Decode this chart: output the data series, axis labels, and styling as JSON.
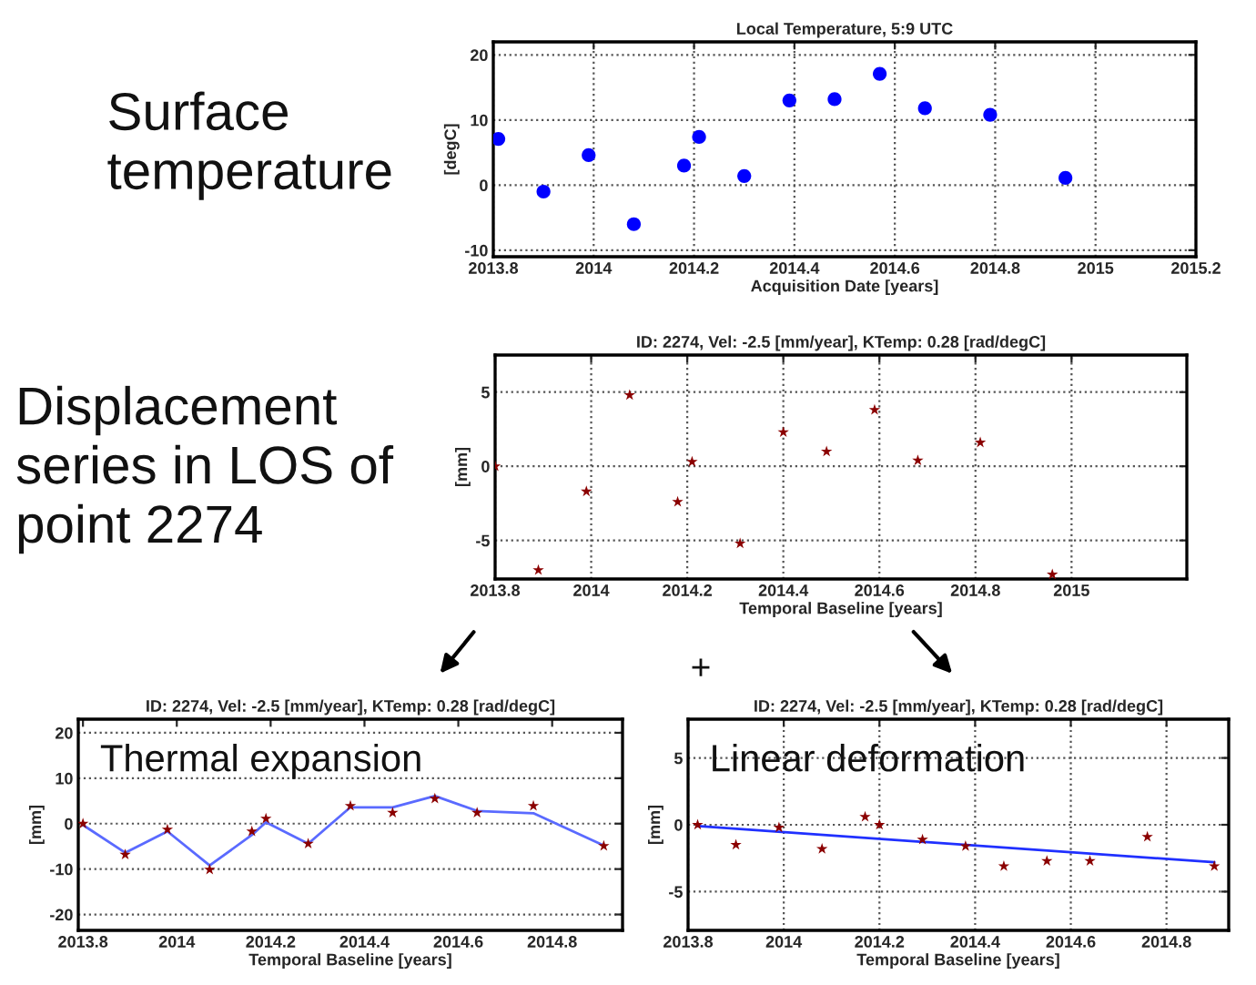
{
  "chart_data": [
    {
      "type": "scatter",
      "title": "Local Temperature, 5:9 UTC",
      "xlabel": "Acquisition Date [years]",
      "ylabel": "[degC]",
      "annotations": [
        "Surface temperature"
      ],
      "x": [
        2013.81,
        2013.9,
        2013.99,
        2014.08,
        2014.18,
        2014.21,
        2014.3,
        2014.39,
        2014.48,
        2014.57,
        2014.66,
        2014.79,
        2014.94
      ],
      "series": [
        {
          "color": "#0000ff",
          "marker": "circle",
          "values": [
            7.1,
            -1.0,
            4.6,
            -6.0,
            3.0,
            7.4,
            1.4,
            13.0,
            13.2,
            17.1,
            11.8,
            10.8,
            1.1
          ]
        }
      ],
      "xlim": [
        2013.8,
        2015.2
      ],
      "xticks": [
        2013.8,
        2014,
        2014.2,
        2014.4,
        2014.6,
        2014.8,
        2015,
        2015.2
      ],
      "ylim": [
        -11,
        22
      ],
      "yticks": [
        -10,
        0,
        10,
        20
      ],
      "grid": true
    },
    {
      "type": "scatter",
      "title": "ID: 2274, Vel: -2.5 [mm/year], KTemp: 0.28 [rad/degC]",
      "xlabel": "Temporal Baseline [years]",
      "ylabel": "[mm]",
      "annotations": [
        "Displacement series in LOS of point 2274",
        "+"
      ],
      "x": [
        2013.8,
        2013.89,
        2013.99,
        2014.08,
        2014.18,
        2014.21,
        2014.31,
        2014.4,
        2014.49,
        2014.59,
        2014.68,
        2014.81,
        2014.96
      ],
      "series": [
        {
          "color": "#8b0000",
          "marker": "star",
          "values": [
            0,
            -7.0,
            -1.7,
            4.8,
            -2.4,
            0.3,
            -5.2,
            2.3,
            1.0,
            3.8,
            0.4,
            1.6,
            -7.3
          ]
        }
      ],
      "xlim": [
        2013.8,
        2015.24
      ],
      "xticks": [
        2013.8,
        2014,
        2014.2,
        2014.4,
        2014.6,
        2014.8,
        2015
      ],
      "ylim": [
        -7.6,
        7.5
      ],
      "yticks": [
        -5,
        0,
        5
      ],
      "grid": true
    },
    {
      "type": "scatter",
      "title": "ID: 2274, Vel: -2.5 [mm/year], KTemp: 0.28 [rad/degC]",
      "xlabel": "Temporal Baseline [years]",
      "ylabel": "[mm]",
      "annotations": [
        "Thermal expansion"
      ],
      "x": [
        2013.8,
        2013.89,
        2013.98,
        2014.07,
        2014.16,
        2014.19,
        2014.28,
        2014.37,
        2014.46,
        2014.55,
        2014.64,
        2014.76,
        2014.91
      ],
      "series": [
        {
          "type": "line",
          "color": "#5a6aff",
          "marker": "none",
          "values": [
            -0.3,
            -6.4,
            -1.7,
            -9.2,
            -2.5,
            0.3,
            -4.4,
            3.6,
            3.6,
            6.1,
            2.8,
            2.3,
            -4.8
          ]
        },
        {
          "color": "#8b0000",
          "marker": "star",
          "values": [
            0,
            -6.8,
            -1.3,
            -10.1,
            -1.7,
            1.1,
            -4.4,
            3.9,
            2.4,
            5.5,
            2.4,
            3.9,
            -4.9
          ]
        }
      ],
      "xlim": [
        2013.79,
        2014.95
      ],
      "xticks": [
        2013.8,
        2014,
        2014.2,
        2014.4,
        2014.6,
        2014.8
      ],
      "ylim": [
        -23.5,
        23
      ],
      "yticks": [
        -20,
        -10,
        0,
        10,
        20
      ],
      "grid": "y"
    },
    {
      "type": "scatter",
      "title": "ID: 2274, Vel: -2.5 [mm/year], KTemp: 0.28 [rad/degC]",
      "xlabel": "Temporal Baseline [years]",
      "ylabel": "[mm]",
      "annotations": [
        "Linear deformation"
      ],
      "x": [
        2013.82,
        2013.9,
        2013.99,
        2014.08,
        2014.17,
        2014.2,
        2014.29,
        2014.38,
        2014.46,
        2014.55,
        2014.64,
        2014.76,
        2014.9
      ],
      "series": [
        {
          "type": "line",
          "color": "#2030ff",
          "marker": "none",
          "x": [
            2013.82,
            2014.9
          ],
          "values": [
            -0.1,
            -2.8
          ]
        },
        {
          "color": "#8b0000",
          "marker": "star",
          "values": [
            0,
            -1.5,
            -0.2,
            -1.8,
            0.6,
            0,
            -1.1,
            -1.6,
            -3.1,
            -2.7,
            -2.7,
            -0.9,
            -3.1
          ]
        }
      ],
      "xlim": [
        2013.8,
        2014.93
      ],
      "xticks": [
        2013.8,
        2014,
        2014.2,
        2014.4,
        2014.6,
        2014.8
      ],
      "ylim": [
        -7.9,
        7.9
      ],
      "yticks": [
        -5,
        0,
        5
      ],
      "grid": true
    }
  ]
}
